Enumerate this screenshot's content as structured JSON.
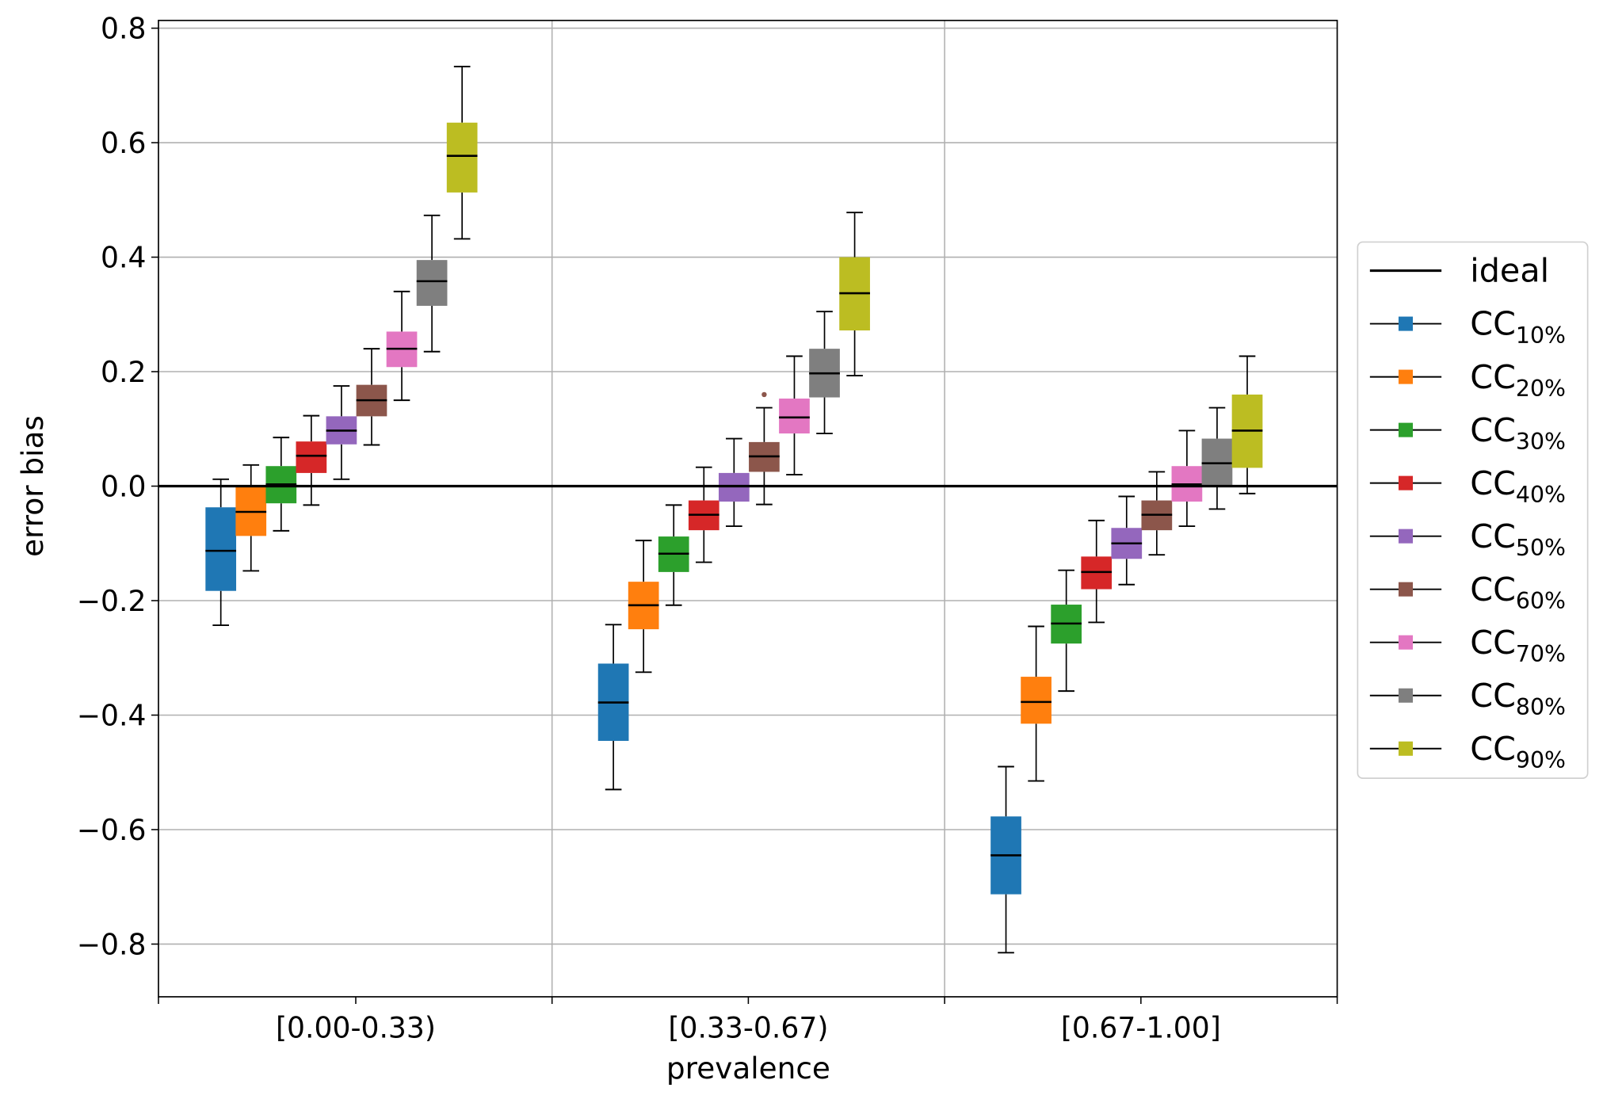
{
  "chart_data": {
    "type": "box",
    "xlabel": "prevalence",
    "ylabel": "error bias",
    "ylim": [
      -0.89,
      0.815
    ],
    "yticks": [
      0.8,
      0.6,
      0.4,
      0.2,
      0.0,
      -0.2,
      -0.4,
      -0.6,
      -0.8
    ],
    "ytick_labels": [
      "0.8",
      "0.6",
      "0.4",
      "0.2",
      "0.0",
      "−0.2",
      "−0.4",
      "−0.6",
      "−0.8"
    ],
    "categories": [
      "[0.00-0.33)",
      "[0.33-0.67)",
      "[0.67-1.00]"
    ],
    "grid": true,
    "legend_placement": "outside-right",
    "reference_line": {
      "name": "ideal",
      "y": 0.0,
      "color": "#000000"
    },
    "series": [
      {
        "name": "CC",
        "sub": "10%",
        "color": "#1f77b4",
        "boxes": [
          [
            -0.243,
            -0.183,
            -0.113,
            -0.037,
            0.012
          ],
          [
            -0.53,
            -0.445,
            -0.378,
            -0.31,
            -0.242
          ],
          [
            -0.815,
            -0.713,
            -0.645,
            -0.577,
            -0.49
          ]
        ]
      },
      {
        "name": "CC",
        "sub": "20%",
        "color": "#ff7f0e",
        "boxes": [
          [
            -0.148,
            -0.087,
            -0.045,
            -0.002,
            0.037
          ],
          [
            -0.325,
            -0.25,
            -0.208,
            -0.167,
            -0.095
          ],
          [
            -0.515,
            -0.415,
            -0.377,
            -0.333,
            -0.245
          ]
        ]
      },
      {
        "name": "CC",
        "sub": "30%",
        "color": "#2ca02c",
        "boxes": [
          [
            -0.078,
            -0.03,
            0.003,
            0.035,
            0.085
          ],
          [
            -0.208,
            -0.15,
            -0.118,
            -0.088,
            -0.033
          ],
          [
            -0.358,
            -0.275,
            -0.24,
            -0.207,
            -0.147
          ]
        ]
      },
      {
        "name": "CC",
        "sub": "40%",
        "color": "#d62728",
        "boxes": [
          [
            -0.033,
            0.023,
            0.053,
            0.078,
            0.123
          ],
          [
            -0.133,
            -0.077,
            -0.05,
            -0.025,
            0.033
          ],
          [
            -0.238,
            -0.18,
            -0.15,
            -0.123,
            -0.06
          ]
        ]
      },
      {
        "name": "CC",
        "sub": "50%",
        "color": "#9467bd",
        "boxes": [
          [
            0.012,
            0.073,
            0.097,
            0.122,
            0.175
          ],
          [
            -0.07,
            -0.027,
            0.0,
            0.023,
            0.083
          ],
          [
            -0.172,
            -0.127,
            -0.1,
            -0.073,
            -0.018
          ]
        ]
      },
      {
        "name": "CC",
        "sub": "60%",
        "color": "#8c564b",
        "boxes": [
          [
            0.072,
            0.122,
            0.15,
            0.177,
            0.24
          ],
          [
            -0.032,
            0.025,
            0.052,
            0.077,
            0.137
          ],
          [
            -0.12,
            -0.077,
            -0.05,
            -0.025,
            0.025
          ]
        ],
        "outliers": [
          [],
          [
            0.16
          ],
          []
        ]
      },
      {
        "name": "CC",
        "sub": "70%",
        "color": "#e377c2",
        "boxes": [
          [
            0.15,
            0.208,
            0.24,
            0.27,
            0.34
          ],
          [
            0.02,
            0.092,
            0.12,
            0.153,
            0.227
          ],
          [
            -0.07,
            -0.027,
            0.003,
            0.035,
            0.097
          ]
        ]
      },
      {
        "name": "CC",
        "sub": "80%",
        "color": "#7f7f7f",
        "boxes": [
          [
            0.235,
            0.315,
            0.358,
            0.395,
            0.473
          ],
          [
            0.092,
            0.155,
            0.197,
            0.24,
            0.305
          ],
          [
            -0.04,
            0.0,
            0.04,
            0.083,
            0.137
          ]
        ]
      },
      {
        "name": "CC",
        "sub": "90%",
        "color": "#bcbd22",
        "boxes": [
          [
            0.432,
            0.513,
            0.577,
            0.635,
            0.733
          ],
          [
            0.193,
            0.272,
            0.337,
            0.4,
            0.478
          ],
          [
            -0.013,
            0.032,
            0.097,
            0.16,
            0.227
          ]
        ]
      }
    ]
  }
}
